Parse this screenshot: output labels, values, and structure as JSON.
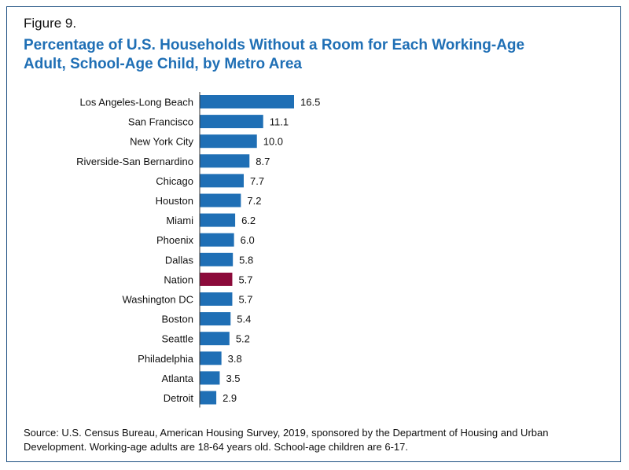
{
  "figure_label": "Figure 9.",
  "title_lines": [
    "Percentage of U.S. Households Without a Room for Each Working-Age",
    "Adult, School-Age Child, by Metro Area"
  ],
  "source_note": "Source: U.S. Census Bureau, American Housing Survey, 2019, sponsored by the Department of Housing and Urban Development. Working-age adults are 18-64 years old. School-age children are 6-17.",
  "colors": {
    "bar": "#1f6fb5",
    "highlight": "#8b0a3a",
    "axis": "#333333",
    "frame": "#1c4e80"
  },
  "chart_data": {
    "type": "bar",
    "orientation": "horizontal",
    "title": "Percentage of U.S. Households Without a Room for Each Working-Age Adult, School-Age Child, by Metro Area",
    "xlabel": "",
    "ylabel": "",
    "xlim": [
      0,
      16.5
    ],
    "grid": false,
    "legend": "none",
    "highlight_category": "Nation",
    "categories": [
      "Los Angeles-Long Beach",
      "San Francisco",
      "New York City",
      "Riverside-San Bernardino",
      "Chicago",
      "Houston",
      "Miami",
      "Phoenix",
      "Dallas",
      "Nation",
      "Washington DC",
      "Boston",
      "Seattle",
      "Philadelphia",
      "Atlanta",
      "Detroit"
    ],
    "values": [
      16.5,
      11.1,
      10.0,
      8.7,
      7.7,
      7.2,
      6.2,
      6.0,
      5.8,
      5.7,
      5.7,
      5.4,
      5.2,
      3.8,
      3.5,
      2.9
    ],
    "value_labels": [
      "16.5",
      "11.1",
      "10.0",
      "8.7",
      "7.7",
      "7.2",
      "6.2",
      "6.0",
      "5.8",
      "5.7",
      "5.7",
      "5.4",
      "5.2",
      "3.8",
      "3.5",
      "2.9"
    ]
  }
}
